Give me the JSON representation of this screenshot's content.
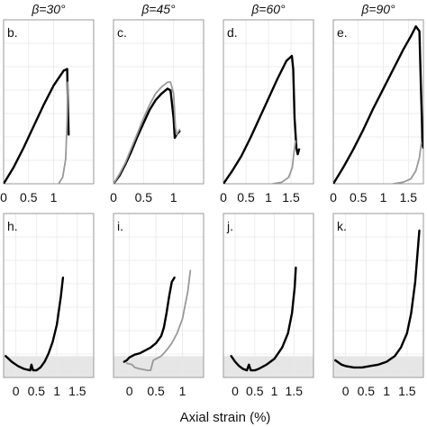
{
  "figure": {
    "xlabel": "Axial strain (%)",
    "colors": {
      "primary": "#000000",
      "secondary": "#999999",
      "band": "#e6e6e6",
      "grid": "#e8e8e8",
      "frame": "#9a9a9a"
    }
  },
  "chart_data": [
    {
      "type": "line",
      "row": 0,
      "col": 0,
      "title": "β=30°",
      "panel_label": "b.",
      "xlim": [
        0,
        1.8
      ],
      "ylim": [
        0,
        1.0
      ],
      "xticks": [
        0,
        0.5,
        1.0
      ],
      "xtick_labels": [
        "0",
        "0.5",
        "1"
      ],
      "series": [
        {
          "x": [
            0,
            0.2,
            0.4,
            0.6,
            0.8,
            1.0,
            1.2,
            1.27,
            1.28,
            1.3
          ],
          "y": [
            0,
            0.1,
            0.22,
            0.35,
            0.48,
            0.6,
            0.69,
            0.7,
            0.55,
            0.3
          ]
        },
        {
          "secondary": true,
          "x": [
            1.1,
            1.18,
            1.24,
            1.27,
            1.28
          ],
          "y": [
            0,
            0.04,
            0.15,
            0.4,
            0.62
          ]
        }
      ]
    },
    {
      "type": "line",
      "row": 0,
      "col": 1,
      "title": "β=45°",
      "panel_label": "c.",
      "xlim": [
        0,
        1.5
      ],
      "ylim": [
        0,
        1.0
      ],
      "xticks": [
        0,
        0.5,
        1.0
      ],
      "xtick_labels": [
        "0",
        "0.5",
        "1"
      ],
      "series": [
        {
          "x": [
            0,
            0.1,
            0.2,
            0.3,
            0.4,
            0.5,
            0.6,
            0.7,
            0.8,
            0.9,
            0.95,
            1.0,
            1.02,
            1.05,
            1.1
          ],
          "y": [
            0,
            0.05,
            0.12,
            0.2,
            0.29,
            0.37,
            0.45,
            0.51,
            0.55,
            0.58,
            0.57,
            0.4,
            0.28,
            0.3,
            0.32
          ]
        },
        {
          "secondary": true,
          "x": [
            0,
            0.1,
            0.2,
            0.3,
            0.4,
            0.5,
            0.6,
            0.7,
            0.8,
            0.9,
            0.95,
            1.0,
            1.03,
            1.05,
            1.1
          ],
          "y": [
            0,
            0.06,
            0.13,
            0.22,
            0.31,
            0.4,
            0.48,
            0.55,
            0.59,
            0.62,
            0.62,
            0.55,
            0.35,
            0.3,
            0.33
          ]
        }
      ]
    },
    {
      "type": "line",
      "row": 0,
      "col": 2,
      "title": "β=60°",
      "panel_label": "d.",
      "xlim": [
        0,
        2.0
      ],
      "ylim": [
        0,
        1.0
      ],
      "xticks": [
        0,
        0.5,
        1.0,
        1.5
      ],
      "xtick_labels": [
        "0",
        "0.5",
        "1",
        "1.5"
      ],
      "series": [
        {
          "x": [
            0,
            0.2,
            0.4,
            0.6,
            0.8,
            1.0,
            1.2,
            1.4,
            1.52,
            1.55,
            1.58,
            1.62,
            1.65,
            1.68
          ],
          "y": [
            0,
            0.08,
            0.17,
            0.28,
            0.4,
            0.52,
            0.64,
            0.75,
            0.78,
            0.7,
            0.4,
            0.22,
            0.18,
            0.21
          ]
        },
        {
          "secondary": true,
          "x": [
            1.1,
            1.3,
            1.45,
            1.53,
            1.57,
            1.6
          ],
          "y": [
            0,
            0.01,
            0.04,
            0.1,
            0.2,
            0.26
          ]
        }
      ]
    },
    {
      "type": "line",
      "row": 0,
      "col": 3,
      "title": "β=90°",
      "panel_label": "e.",
      "xlim": [
        0,
        1.8
      ],
      "ylim": [
        0,
        1.0
      ],
      "xticks": [
        0,
        0.5,
        1.0,
        1.5
      ],
      "xtick_labels": [
        "0",
        "0.5",
        "1",
        "1.5"
      ],
      "series": [
        {
          "x": [
            0,
            0.2,
            0.4,
            0.6,
            0.8,
            1.0,
            1.2,
            1.4,
            1.55,
            1.65,
            1.72,
            1.75,
            1.77,
            1.78,
            1.8
          ],
          "y": [
            0,
            0.1,
            0.21,
            0.33,
            0.46,
            0.58,
            0.7,
            0.82,
            0.9,
            0.96,
            0.93,
            0.6,
            0.4,
            0.24,
            0.22
          ]
        },
        {
          "secondary": true,
          "x": [
            1.2,
            1.4,
            1.55,
            1.65,
            1.72,
            1.76
          ],
          "y": [
            0,
            0.01,
            0.03,
            0.08,
            0.16,
            0.25
          ]
        }
      ]
    },
    {
      "type": "line",
      "row": 1,
      "col": 0,
      "panel_label": "h.",
      "xlim": [
        -0.3,
        1.9
      ],
      "ylim": [
        -0.15,
        1.0
      ],
      "xticks": [
        0,
        0.5,
        1.0,
        1.5
      ],
      "xtick_labels": [
        "0",
        "0.5",
        "1",
        "1.5"
      ],
      "series": [
        {
          "x": [
            -0.25,
            -0.1,
            0.05,
            0.2,
            0.35,
            0.38,
            0.42,
            0.5,
            0.6,
            0.7,
            0.8,
            0.9,
            1.0,
            1.1,
            1.15
          ],
          "y": [
            0.0,
            -0.04,
            -0.07,
            -0.09,
            -0.1,
            -0.06,
            -0.1,
            -0.1,
            -0.08,
            -0.04,
            0.02,
            0.1,
            0.22,
            0.42,
            0.55
          ]
        }
      ]
    },
    {
      "type": "line",
      "row": 1,
      "col": 1,
      "panel_label": "i.",
      "xlim": [
        -0.3,
        1.4
      ],
      "ylim": [
        -0.15,
        1.0
      ],
      "xticks": [
        0,
        0.5,
        1.0
      ],
      "xtick_labels": [
        "0",
        "0.5",
        "1"
      ],
      "series": [
        {
          "x": [
            -0.1,
            -0.05,
            0.0,
            0.1,
            0.2,
            0.3,
            0.4,
            0.5,
            0.6,
            0.65,
            0.7,
            0.75,
            0.8,
            0.85
          ],
          "y": [
            -0.04,
            -0.03,
            -0.01,
            0.01,
            0.02,
            0.04,
            0.06,
            0.09,
            0.14,
            0.2,
            0.3,
            0.42,
            0.52,
            0.55
          ]
        },
        {
          "secondary": true,
          "x": [
            -0.05,
            0.05,
            0.1,
            0.2,
            0.35,
            0.4,
            0.45,
            0.5,
            0.6,
            0.7,
            0.8,
            0.9,
            1.0,
            1.1,
            1.15
          ],
          "y": [
            -0.05,
            -0.06,
            -0.08,
            -0.09,
            -0.1,
            -0.1,
            -0.03,
            -0.02,
            0.0,
            0.04,
            0.09,
            0.16,
            0.26,
            0.45,
            0.6
          ]
        }
      ]
    },
    {
      "type": "line",
      "row": 1,
      "col": 2,
      "panel_label": "j.",
      "xlim": [
        -0.3,
        2.0
      ],
      "ylim": [
        -0.15,
        1.0
      ],
      "xticks": [
        0,
        0.5,
        1.0,
        1.5
      ],
      "xtick_labels": [
        "0",
        "0.5",
        "1",
        "1.5"
      ],
      "series": [
        {
          "x": [
            -0.1,
            0.0,
            0.1,
            0.2,
            0.3,
            0.35,
            0.4,
            0.5,
            0.6,
            0.8,
            1.0,
            1.2,
            1.35,
            1.45,
            1.52,
            1.55
          ],
          "y": [
            0.0,
            -0.04,
            -0.07,
            -0.09,
            -0.1,
            -0.06,
            -0.1,
            -0.1,
            -0.09,
            -0.06,
            -0.02,
            0.06,
            0.16,
            0.3,
            0.48,
            0.62
          ]
        }
      ]
    },
    {
      "type": "line",
      "row": 1,
      "col": 3,
      "panel_label": "k.",
      "xlim": [
        -0.3,
        1.9
      ],
      "ylim": [
        -0.15,
        1.0
      ],
      "xticks": [
        0,
        0.5,
        1.0,
        1.5
      ],
      "xtick_labels": [
        "0",
        "0.5",
        "1",
        "1.5"
      ],
      "series": [
        {
          "x": [
            -0.25,
            -0.1,
            0.0,
            0.2,
            0.4,
            0.6,
            0.8,
            1.0,
            1.2,
            1.35,
            1.5,
            1.6,
            1.7,
            1.8
          ],
          "y": [
            -0.03,
            -0.06,
            -0.07,
            -0.08,
            -0.08,
            -0.07,
            -0.06,
            -0.04,
            0.0,
            0.06,
            0.16,
            0.3,
            0.52,
            0.88
          ]
        }
      ]
    }
  ]
}
